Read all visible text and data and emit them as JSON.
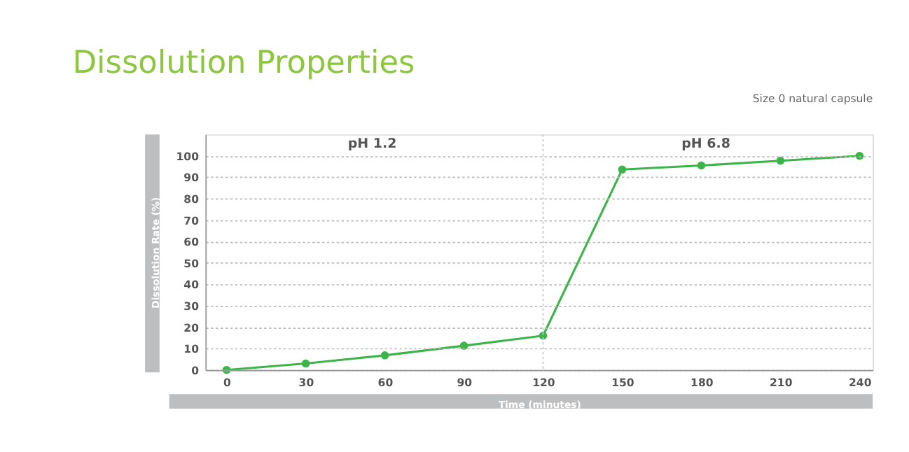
{
  "chart_data": {
    "type": "line",
    "title": "Dissolution Properties",
    "subtitle": "Size 0 natural capsule",
    "xlabel": "Time (minutes)",
    "ylabel": "Dissolution Rate (%)",
    "x": [
      0,
      30,
      60,
      90,
      120,
      150,
      180,
      210,
      240
    ],
    "series": [
      {
        "color": "#3cb44a",
        "values": [
          0,
          3,
          6.8,
          11.3,
          16,
          93.6,
          95.5,
          97.7,
          100
        ]
      }
    ],
    "xlim": [
      -8,
      245
    ],
    "xticks": [
      0,
      30,
      60,
      90,
      120,
      150,
      180,
      210,
      240
    ],
    "ylim": [
      0,
      110
    ],
    "yticks": [
      0,
      10,
      20,
      30,
      40,
      50,
      60,
      70,
      80,
      90,
      100
    ],
    "grid": "y",
    "marker": "circle",
    "line_style": "solid",
    "ref_lines": [
      {
        "axis": "x",
        "value": 120,
        "color": "#c8c8c8",
        "line_style": "dotted"
      }
    ],
    "annotations": [
      "pH 1.2",
      "pH 6.8"
    ]
  }
}
